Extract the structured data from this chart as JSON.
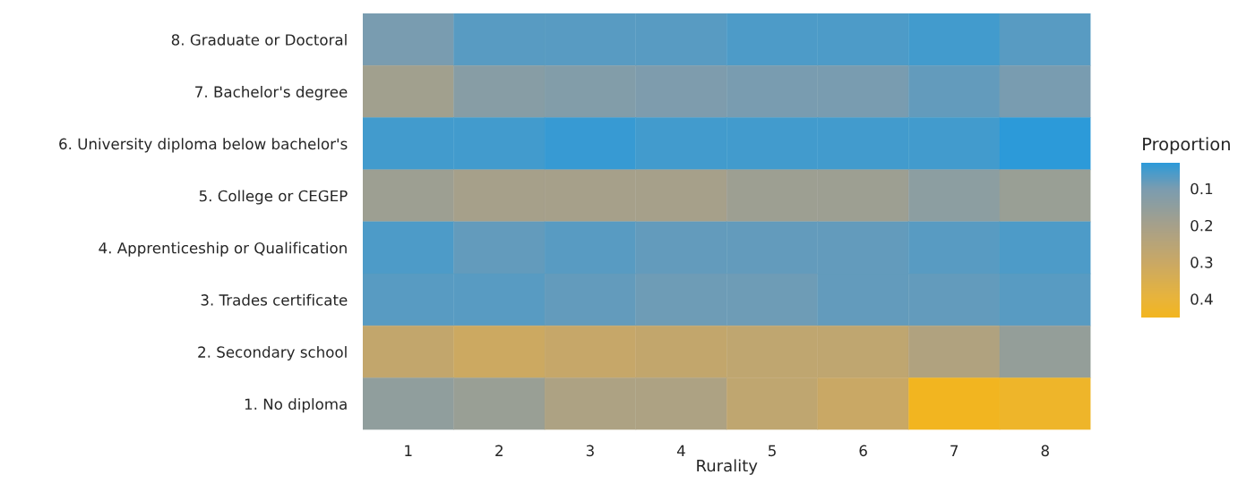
{
  "chart_data": {
    "type": "heatmap",
    "xlabel": "Rurality",
    "clabel": "Proportion",
    "categories": [
      "1",
      "2",
      "3",
      "4",
      "5",
      "6",
      "7",
      "8"
    ],
    "y_categories": [
      "8. Graduate or Doctoral",
      "7. Bachelor's degree",
      "6. University diploma below bachelor's",
      "5. College or CEGEP",
      "4. Apprenticeship or Qualification",
      "3. Trades certificate",
      "2. Secondary school",
      "1. No diploma"
    ],
    "cells": [
      [
        0.1,
        0.07,
        0.07,
        0.07,
        0.06,
        0.06,
        0.05,
        0.07
      ],
      [
        0.19,
        0.13,
        0.12,
        0.11,
        0.1,
        0.1,
        0.08,
        0.1
      ],
      [
        0.05,
        0.05,
        0.04,
        0.05,
        0.05,
        0.05,
        0.05,
        0.03
      ],
      [
        0.18,
        0.2,
        0.2,
        0.2,
        0.18,
        0.18,
        0.14,
        0.17
      ],
      [
        0.06,
        0.08,
        0.07,
        0.08,
        0.08,
        0.08,
        0.07,
        0.06
      ],
      [
        0.07,
        0.07,
        0.08,
        0.09,
        0.09,
        0.08,
        0.08,
        0.07
      ],
      [
        0.28,
        0.31,
        0.29,
        0.28,
        0.27,
        0.27,
        0.23,
        0.16
      ],
      [
        0.15,
        0.17,
        0.22,
        0.22,
        0.27,
        0.3,
        0.45,
        0.43
      ]
    ],
    "clim": [
      0.03,
      0.45
    ],
    "cticks": [
      0.1,
      0.2,
      0.3,
      0.4
    ]
  }
}
